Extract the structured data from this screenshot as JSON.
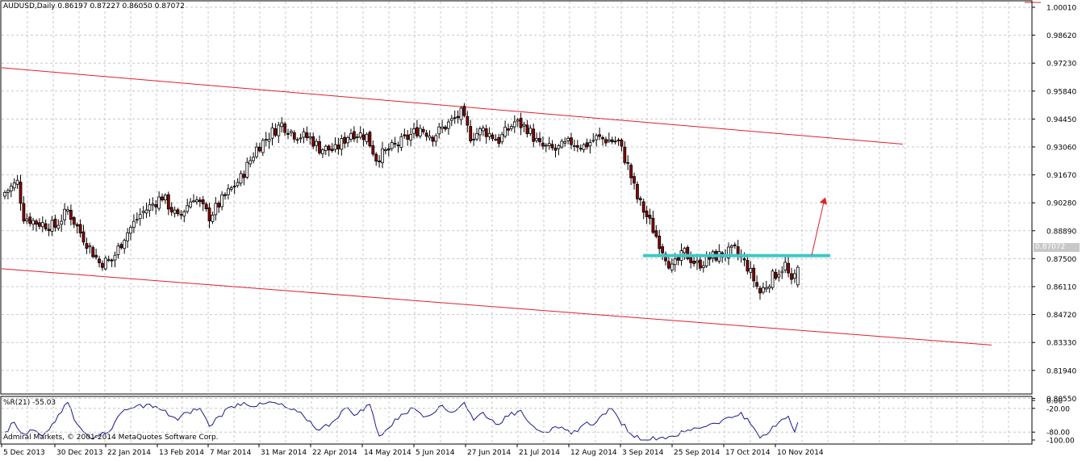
{
  "header": {
    "text": "AUDUSD,Daily  0.86197 0.87227 0.86050 0.87072"
  },
  "current_price_tag": "0.87072",
  "indicator": {
    "title": "%R(21) -55.03"
  },
  "copyright": "Admiral Markets, © 2001-2014 MetaQuotes Software Corp.",
  "colors": {
    "grid": "#c8c8c8",
    "candle_up": "#ffffff",
    "candle_down": "#8b0000",
    "candle_outline": "#000000",
    "channel": "#e0202a",
    "support": "#3cc8c8",
    "arrow": "#e0202a",
    "wr_line": "#1a1a8c"
  },
  "chart_data": [
    {
      "type": "candlestick",
      "symbol": "AUDUSD",
      "timeframe": "Daily",
      "y_ticks": [
        "1.00010",
        "0.98620",
        "0.97230",
        "0.95840",
        "0.94450",
        "0.93060",
        "0.91670",
        "0.90280",
        "0.88890",
        "0.87500",
        "0.86110",
        "0.84720",
        "0.83330",
        "0.81940",
        "0.80550"
      ],
      "x_ticks": [
        "5 Dec 2013",
        "30 Dec 2013",
        "22 Jan 2014",
        "13 Feb 2014",
        "7 Mar 2014",
        "31 Mar 2014",
        "22 Apr 2014",
        "14 May 2014",
        "5 Jun 2014",
        "27 Jun 2014",
        "21 Jul 2014",
        "12 Aug 2014",
        "3 Sep 2014",
        "25 Sep 2014",
        "17 Oct 2014",
        "10 Nov 2014"
      ],
      "ylim": [
        0.7935,
        1.0015
      ],
      "anchors": [
        {
          "i": 0,
          "close": 0.908
        },
        {
          "i": 4,
          "close": 0.913
        },
        {
          "i": 6,
          "close": 0.896
        },
        {
          "i": 10,
          "close": 0.893
        },
        {
          "i": 16,
          "close": 0.891
        },
        {
          "i": 20,
          "close": 0.899
        },
        {
          "i": 24,
          "close": 0.888
        },
        {
          "i": 28,
          "close": 0.878
        },
        {
          "i": 30,
          "close": 0.873
        },
        {
          "i": 34,
          "close": 0.874
        },
        {
          "i": 38,
          "close": 0.886
        },
        {
          "i": 43,
          "close": 0.897
        },
        {
          "i": 50,
          "close": 0.906
        },
        {
          "i": 55,
          "close": 0.895
        },
        {
          "i": 60,
          "close": 0.906
        },
        {
          "i": 65,
          "close": 0.896
        },
        {
          "i": 70,
          "close": 0.906
        },
        {
          "i": 75,
          "close": 0.915
        },
        {
          "i": 80,
          "close": 0.93
        },
        {
          "i": 85,
          "close": 0.938
        },
        {
          "i": 88,
          "close": 0.942
        },
        {
          "i": 92,
          "close": 0.937
        },
        {
          "i": 97,
          "close": 0.935
        },
        {
          "i": 100,
          "close": 0.93
        },
        {
          "i": 105,
          "close": 0.929
        },
        {
          "i": 110,
          "close": 0.938
        },
        {
          "i": 115,
          "close": 0.936
        },
        {
          "i": 118,
          "close": 0.925
        },
        {
          "i": 122,
          "close": 0.929
        },
        {
          "i": 126,
          "close": 0.933
        },
        {
          "i": 132,
          "close": 0.94
        },
        {
          "i": 136,
          "close": 0.936
        },
        {
          "i": 140,
          "close": 0.941
        },
        {
          "i": 145,
          "close": 0.947
        },
        {
          "i": 148,
          "close": 0.936
        },
        {
          "i": 152,
          "close": 0.939
        },
        {
          "i": 157,
          "close": 0.934
        },
        {
          "i": 162,
          "close": 0.943
        },
        {
          "i": 166,
          "close": 0.94
        },
        {
          "i": 170,
          "close": 0.931
        },
        {
          "i": 175,
          "close": 0.929
        },
        {
          "i": 180,
          "close": 0.933
        },
        {
          "i": 184,
          "close": 0.931
        },
        {
          "i": 188,
          "close": 0.935
        },
        {
          "i": 192,
          "close": 0.934
        },
        {
          "i": 195,
          "close": 0.933
        },
        {
          "i": 198,
          "close": 0.921
        },
        {
          "i": 201,
          "close": 0.905
        },
        {
          "i": 205,
          "close": 0.893
        },
        {
          "i": 208,
          "close": 0.883
        },
        {
          "i": 212,
          "close": 0.87
        },
        {
          "i": 216,
          "close": 0.878
        },
        {
          "i": 220,
          "close": 0.872
        },
        {
          "i": 225,
          "close": 0.876
        },
        {
          "i": 228,
          "close": 0.877
        },
        {
          "i": 232,
          "close": 0.879
        },
        {
          "i": 236,
          "close": 0.871
        },
        {
          "i": 240,
          "close": 0.858
        },
        {
          "i": 244,
          "close": 0.866
        },
        {
          "i": 248,
          "close": 0.872
        },
        {
          "i": 250,
          "close": 0.862
        },
        {
          "i": 252,
          "close": 0.8707
        }
      ],
      "channel_upper": [
        {
          "date": "late Nov 2013",
          "price": 0.97
        },
        {
          "date": "3 Dec 2014",
          "price": 0.932
        }
      ],
      "channel_lower": [
        {
          "date": "late Nov 2013",
          "price": 0.87
        },
        {
          "date": "11 Dec 2014",
          "price": 0.832
        }
      ],
      "support_level": 0.8765,
      "projection_arrow": {
        "from": 0.8767,
        "to": 0.9055
      }
    },
    {
      "type": "line",
      "name": "%R(21)",
      "y_ticks": [
        "0.00",
        "-20.00",
        "-80.00",
        "-100.00"
      ],
      "ylim": [
        -100,
        0
      ],
      "last_value": -55.03,
      "anchors": [
        {
          "i": 0,
          "v": -80
        },
        {
          "i": 3,
          "v": -55
        },
        {
          "i": 6,
          "v": -85
        },
        {
          "i": 9,
          "v": -75
        },
        {
          "i": 12,
          "v": -90
        },
        {
          "i": 15,
          "v": -60
        },
        {
          "i": 18,
          "v": -30
        },
        {
          "i": 20,
          "v": -5
        },
        {
          "i": 23,
          "v": -60
        },
        {
          "i": 27,
          "v": -95
        },
        {
          "i": 30,
          "v": -90
        },
        {
          "i": 33,
          "v": -80
        },
        {
          "i": 36,
          "v": -40
        },
        {
          "i": 40,
          "v": -20
        },
        {
          "i": 45,
          "v": -10
        },
        {
          "i": 50,
          "v": -25
        },
        {
          "i": 55,
          "v": -50
        },
        {
          "i": 58,
          "v": -30
        },
        {
          "i": 62,
          "v": -20
        },
        {
          "i": 65,
          "v": -65
        },
        {
          "i": 68,
          "v": -40
        },
        {
          "i": 72,
          "v": -15
        },
        {
          "i": 76,
          "v": -5
        },
        {
          "i": 80,
          "v": -15
        },
        {
          "i": 85,
          "v": -5
        },
        {
          "i": 90,
          "v": -20
        },
        {
          "i": 95,
          "v": -40
        },
        {
          "i": 100,
          "v": -75
        },
        {
          "i": 104,
          "v": -55
        },
        {
          "i": 108,
          "v": -20
        },
        {
          "i": 112,
          "v": -35
        },
        {
          "i": 116,
          "v": -10
        },
        {
          "i": 119,
          "v": -90
        },
        {
          "i": 122,
          "v": -70
        },
        {
          "i": 126,
          "v": -35
        },
        {
          "i": 130,
          "v": -20
        },
        {
          "i": 134,
          "v": -40
        },
        {
          "i": 138,
          "v": -15
        },
        {
          "i": 142,
          "v": -30
        },
        {
          "i": 146,
          "v": -5
        },
        {
          "i": 149,
          "v": -50
        },
        {
          "i": 152,
          "v": -30
        },
        {
          "i": 156,
          "v": -60
        },
        {
          "i": 160,
          "v": -40
        },
        {
          "i": 164,
          "v": -25
        },
        {
          "i": 168,
          "v": -65
        },
        {
          "i": 172,
          "v": -80
        },
        {
          "i": 176,
          "v": -70
        },
        {
          "i": 180,
          "v": -85
        },
        {
          "i": 184,
          "v": -60
        },
        {
          "i": 188,
          "v": -55
        },
        {
          "i": 192,
          "v": -20
        },
        {
          "i": 195,
          "v": -45
        },
        {
          "i": 199,
          "v": -85
        },
        {
          "i": 203,
          "v": -100
        },
        {
          "i": 208,
          "v": -95
        },
        {
          "i": 212,
          "v": -90
        },
        {
          "i": 216,
          "v": -80
        },
        {
          "i": 220,
          "v": -70
        },
        {
          "i": 224,
          "v": -60
        },
        {
          "i": 228,
          "v": -50
        },
        {
          "i": 232,
          "v": -40
        },
        {
          "i": 234,
          "v": -30
        },
        {
          "i": 237,
          "v": -60
        },
        {
          "i": 240,
          "v": -95
        },
        {
          "i": 243,
          "v": -80
        },
        {
          "i": 246,
          "v": -55
        },
        {
          "i": 249,
          "v": -40
        },
        {
          "i": 251,
          "v": -80
        },
        {
          "i": 252,
          "v": -55
        }
      ]
    }
  ]
}
